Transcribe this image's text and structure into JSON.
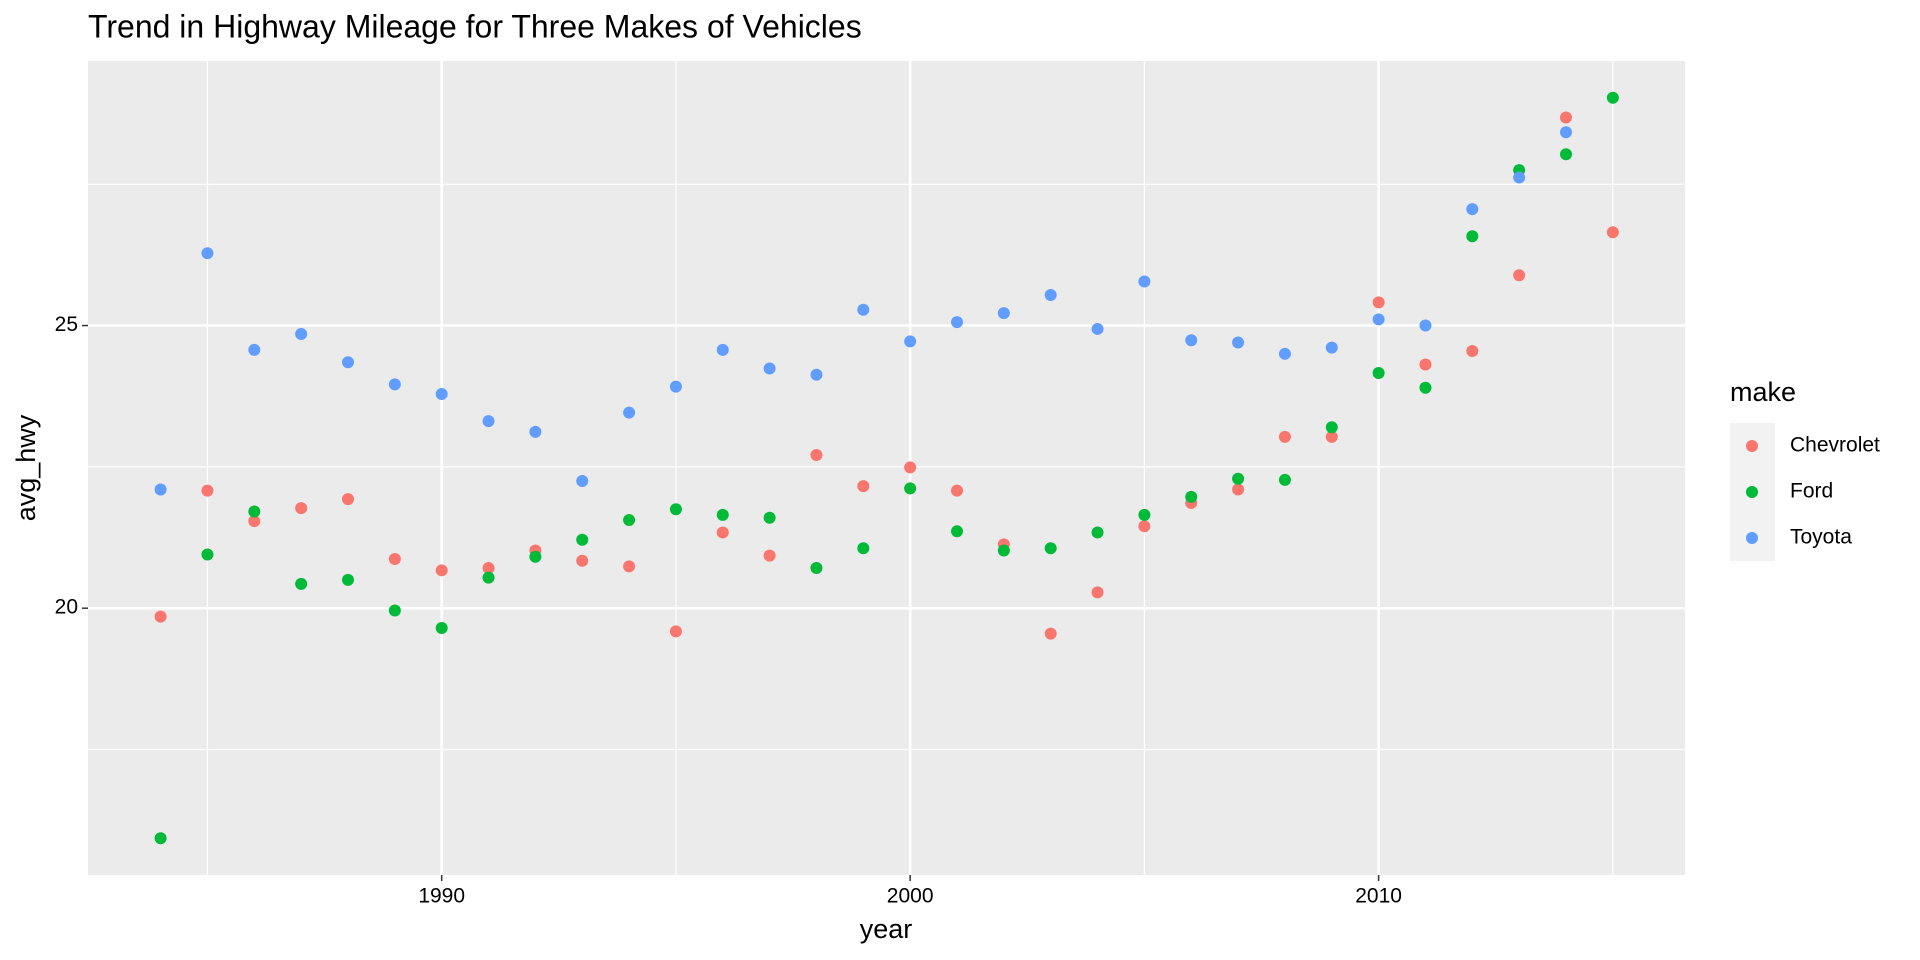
{
  "chart_data": {
    "type": "scatter",
    "title": "Trend in Highway Mileage for Three Makes of Vehicles",
    "x_label": "year",
    "y_label": "avg_hwy",
    "legend_title": "make",
    "x": [
      1984,
      1985,
      1986,
      1987,
      1988,
      1989,
      1990,
      1991,
      1992,
      1993,
      1994,
      1995,
      1996,
      1997,
      1998,
      1999,
      2000,
      2001,
      2002,
      2003,
      2004,
      2005,
      2006,
      2007,
      2008,
      2009,
      2010,
      2011,
      2012,
      2013,
      2014,
      2015
    ],
    "series": [
      {
        "name": "Chevrolet",
        "color": "#f8766d",
        "values": [
          19.85,
          22.08,
          21.54,
          21.77,
          21.93,
          20.87,
          20.67,
          20.71,
          21.02,
          20.84,
          20.74,
          19.59,
          21.34,
          20.93,
          22.71,
          22.16,
          22.49,
          22.08,
          21.13,
          19.55,
          20.28,
          21.45,
          21.86,
          22.1,
          23.03,
          23.03,
          25.41,
          24.31,
          24.55,
          25.89,
          28.68,
          26.65
        ]
      },
      {
        "name": "Ford",
        "color": "#00ba38",
        "values": [
          15.93,
          20.95,
          21.71,
          20.43,
          20.5,
          19.96,
          19.65,
          20.54,
          20.91,
          21.21,
          21.56,
          21.75,
          21.65,
          21.6,
          20.71,
          21.06,
          22.12,
          21.36,
          21.02,
          21.06,
          21.34,
          21.65,
          21.97,
          22.29,
          22.27,
          23.2,
          24.16,
          23.9,
          26.58,
          27.75,
          28.03,
          29.03
        ]
      },
      {
        "name": "Toyota",
        "color": "#619cff",
        "values": [
          22.1,
          26.28,
          24.57,
          24.85,
          24.35,
          23.96,
          23.79,
          23.31,
          23.12,
          22.25,
          23.46,
          23.92,
          24.57,
          24.24,
          24.13,
          25.28,
          24.72,
          25.06,
          25.22,
          25.54,
          24.94,
          25.78,
          24.74,
          24.7,
          24.5,
          24.61,
          25.11,
          25,
          27.06,
          27.62,
          28.42,
          null
        ]
      }
    ],
    "xlim": [
      1982.45,
      2016.54
    ],
    "ylim": [
      15.28,
      29.68
    ],
    "xticks": [
      1990,
      2000,
      2010
    ],
    "yticks": [
      20,
      25
    ],
    "x_minor_ticks": [
      1985,
      1995,
      2005,
      2015
    ],
    "y_minor_ticks": [
      17.5,
      22.5,
      27.5
    ],
    "grid": true,
    "legend": "right"
  }
}
